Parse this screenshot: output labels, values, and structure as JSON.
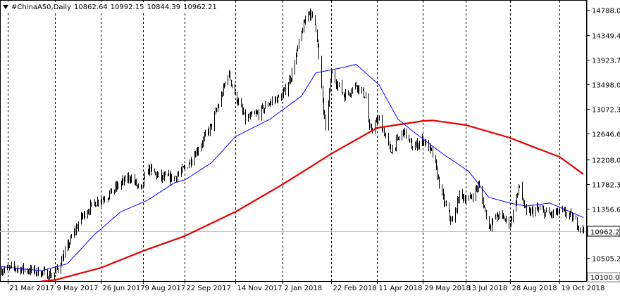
{
  "header": {
    "symbol_timeframe": "#ChinaA50,Daily",
    "open": "10862.64",
    "high": "10992.15",
    "low": "10844.39",
    "close": "10962.21"
  },
  "current_price_label": "10962.21",
  "bottom_price_label": "10100.00",
  "colors": {
    "background": "#ffffff",
    "candles": "#000000",
    "ma_fast": "#0000ff",
    "ma_slow": "#e00000",
    "grid": "#000000",
    "price_line": "#c0c0c0"
  },
  "chart_data": {
    "type": "candlestick",
    "title": "#ChinaA50,Daily",
    "y_ticks": [
      "14788.00",
      "14349.40",
      "13923.70",
      "13498.00",
      "13072.30",
      "12646.60",
      "12208.00",
      "11782.30",
      "11356.60",
      "10505.20"
    ],
    "ylim": [
      10100,
      14950
    ],
    "x_ticks": [
      "21 Mar 2017",
      "9 May 2017",
      "26 Jun 2017",
      "9 Aug 2017",
      "22 Sep 2017",
      "14 Nov 2017",
      "2 Jan 2018",
      "22 Feb 2018",
      "11 Apr 2018",
      "29 May 2018",
      "13 Jul 2018",
      "28 Aug 2018",
      "19 Oct 2018"
    ],
    "x_tick_dates": [
      "2017-03-21",
      "2017-05-09",
      "2017-06-26",
      "2017-08-09",
      "2017-09-22",
      "2017-11-14",
      "2018-01-02",
      "2018-02-22",
      "2018-04-11",
      "2018-05-29",
      "2018-07-13",
      "2018-08-28",
      "2018-10-19"
    ],
    "date_range": [
      "2017-03-14",
      "2018-11-13"
    ],
    "grid": "vertical dashed",
    "close_path": [
      [
        "2017-03-14",
        10300
      ],
      [
        "2017-03-28",
        10330
      ],
      [
        "2017-04-11",
        10290
      ],
      [
        "2017-04-25",
        10250
      ],
      [
        "2017-05-05",
        10200
      ],
      [
        "2017-05-12",
        10320
      ],
      [
        "2017-05-22",
        10700
      ],
      [
        "2017-06-05",
        11200
      ],
      [
        "2017-06-19",
        11450
      ],
      [
        "2017-07-03",
        11580
      ],
      [
        "2017-07-17",
        11800
      ],
      [
        "2017-07-27",
        11900
      ],
      [
        "2017-08-07",
        11650
      ],
      [
        "2017-08-14",
        12050
      ],
      [
        "2017-08-28",
        11880
      ],
      [
        "2017-09-11",
        11900
      ],
      [
        "2017-09-22",
        12050
      ],
      [
        "2017-10-06",
        12400
      ],
      [
        "2017-10-20",
        12800
      ],
      [
        "2017-10-30",
        13300
      ],
      [
        "2017-11-06",
        13700
      ],
      [
        "2017-11-14",
        13300
      ],
      [
        "2017-11-24",
        12900
      ],
      [
        "2017-12-08",
        13000
      ],
      [
        "2017-12-20",
        13200
      ],
      [
        "2018-01-02",
        13300
      ],
      [
        "2018-01-12",
        13700
      ],
      [
        "2018-01-22",
        14400
      ],
      [
        "2018-01-29",
        14800
      ],
      [
        "2018-02-06",
        14500
      ],
      [
        "2018-02-12",
        13400
      ],
      [
        "2018-02-16",
        12700
      ],
      [
        "2018-02-22",
        13700
      ],
      [
        "2018-03-08",
        13300
      ],
      [
        "2018-03-20",
        13500
      ],
      [
        "2018-03-30",
        13300
      ],
      [
        "2018-04-03",
        12700
      ],
      [
        "2018-04-13",
        12900
      ],
      [
        "2018-04-25",
        12350
      ],
      [
        "2018-05-09",
        12700
      ],
      [
        "2018-05-18",
        12400
      ],
      [
        "2018-05-29",
        12550
      ],
      [
        "2018-06-08",
        12300
      ],
      [
        "2018-06-19",
        11500
      ],
      [
        "2018-06-29",
        11100
      ],
      [
        "2018-07-06",
        11600
      ],
      [
        "2018-07-16",
        11500
      ],
      [
        "2018-07-26",
        11750
      ],
      [
        "2018-08-06",
        11050
      ],
      [
        "2018-08-16",
        11250
      ],
      [
        "2018-08-28",
        11100
      ],
      [
        "2018-09-07",
        11750
      ],
      [
        "2018-09-14",
        11250
      ],
      [
        "2018-09-25",
        11350
      ],
      [
        "2018-10-09",
        11250
      ],
      [
        "2018-10-19",
        11300
      ],
      [
        "2018-10-29",
        11250
      ],
      [
        "2018-11-06",
        11100
      ],
      [
        "2018-11-13",
        10962
      ]
    ],
    "series": [
      {
        "name": "",
        "role": "ma_fast",
        "points": [
          [
            "2017-03-14",
            10350
          ],
          [
            "2017-04-25",
            10280
          ],
          [
            "2017-05-22",
            10400
          ],
          [
            "2017-06-19",
            10900
          ],
          [
            "2017-07-17",
            11300
          ],
          [
            "2017-08-14",
            11500
          ],
          [
            "2017-09-11",
            11800
          ],
          [
            "2017-09-22",
            11850
          ],
          [
            "2017-10-20",
            12150
          ],
          [
            "2017-11-14",
            12600
          ],
          [
            "2017-12-20",
            12900
          ],
          [
            "2018-01-22",
            13300
          ],
          [
            "2018-02-06",
            13700
          ],
          [
            "2018-03-08",
            13800
          ],
          [
            "2018-03-20",
            13850
          ],
          [
            "2018-04-13",
            13500
          ],
          [
            "2018-05-03",
            12900
          ],
          [
            "2018-05-18",
            12700
          ],
          [
            "2018-06-19",
            12300
          ],
          [
            "2018-07-16",
            12000
          ],
          [
            "2018-08-06",
            11550
          ],
          [
            "2018-08-28",
            11450
          ],
          [
            "2018-09-14",
            11400
          ],
          [
            "2018-10-09",
            11450
          ],
          [
            "2018-11-13",
            11200
          ]
        ]
      },
      {
        "name": "",
        "role": "ma_slow",
        "points": [
          [
            "2017-04-25",
            10100
          ],
          [
            "2017-05-09",
            10120
          ],
          [
            "2017-06-26",
            10330
          ],
          [
            "2017-08-09",
            10620
          ],
          [
            "2017-09-22",
            10880
          ],
          [
            "2017-11-14",
            11300
          ],
          [
            "2018-01-02",
            11770
          ],
          [
            "2018-02-22",
            12300
          ],
          [
            "2018-04-11",
            12750
          ],
          [
            "2018-05-29",
            12870
          ],
          [
            "2018-06-08",
            12880
          ],
          [
            "2018-07-13",
            12800
          ],
          [
            "2018-08-28",
            12580
          ],
          [
            "2018-09-25",
            12400
          ],
          [
            "2018-10-19",
            12250
          ],
          [
            "2018-11-13",
            11950
          ]
        ]
      }
    ]
  }
}
